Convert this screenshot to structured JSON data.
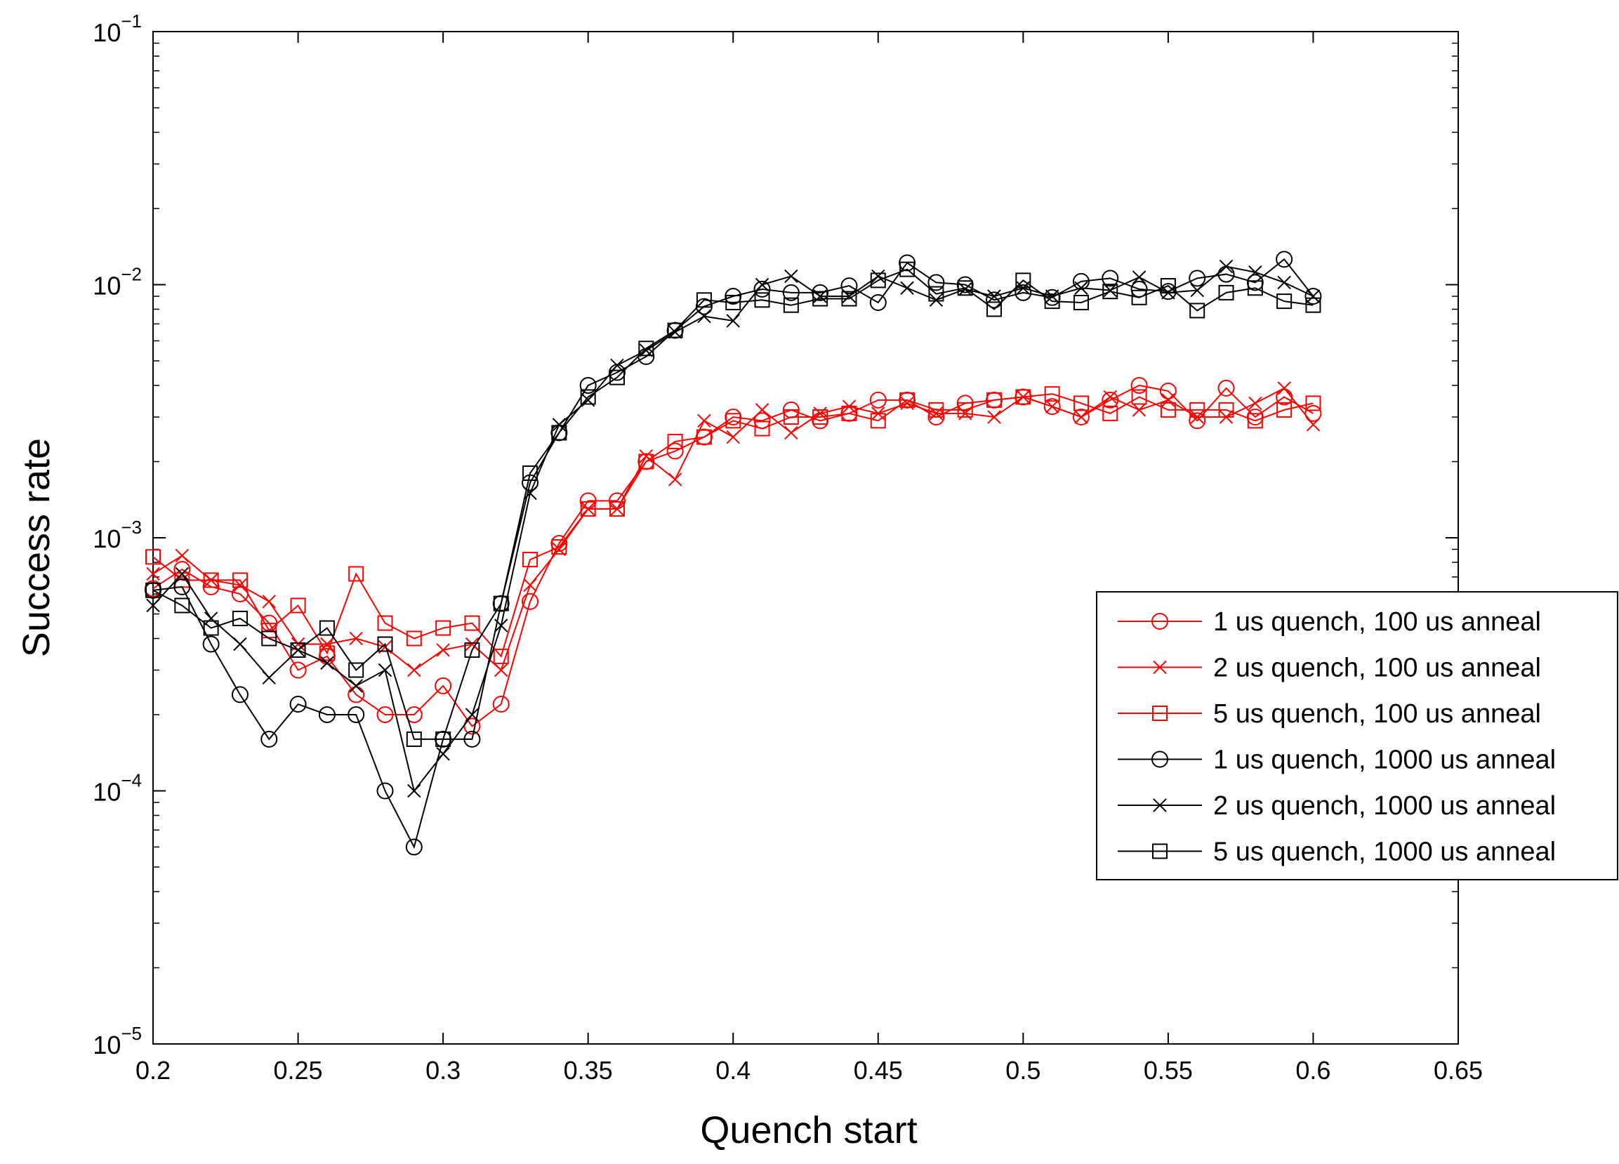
{
  "chart_data": {
    "type": "line",
    "xlabel": "Quench start",
    "ylabel": "Success rate",
    "yscale": "log",
    "xlim": [
      0.2,
      0.65
    ],
    "ylim": [
      1e-05,
      0.1
    ],
    "xticks": [
      0.2,
      0.25,
      0.3,
      0.35,
      0.4,
      0.45,
      0.5,
      0.55,
      0.6,
      0.65
    ],
    "xtick_labels": [
      "0.2",
      "0.25",
      "0.3",
      "0.35",
      "0.4",
      "0.45",
      "0.5",
      "0.55",
      "0.6",
      "0.65"
    ],
    "yticks": [
      {
        "value": 0.1,
        "base": "10",
        "exp": "−1"
      },
      {
        "value": 0.01,
        "base": "10",
        "exp": "−2"
      },
      {
        "value": 0.001,
        "base": "10",
        "exp": "−3"
      },
      {
        "value": 0.0001,
        "base": "10",
        "exp": "−4"
      },
      {
        "value": 1e-05,
        "base": "10",
        "exp": "−5"
      }
    ],
    "grid": false,
    "legend_position": "right",
    "colors": {
      "red": "#ff0000",
      "black": "#000000"
    },
    "x": [
      0.2,
      0.21,
      0.22,
      0.23,
      0.24,
      0.25,
      0.26,
      0.27,
      0.28,
      0.29,
      0.3,
      0.31,
      0.32,
      0.33,
      0.34,
      0.35,
      0.36,
      0.37,
      0.38,
      0.39,
      0.4,
      0.41,
      0.42,
      0.43,
      0.44,
      0.45,
      0.46,
      0.47,
      0.48,
      0.49,
      0.5,
      0.51,
      0.52,
      0.53,
      0.54,
      0.55,
      0.56,
      0.57,
      0.58,
      0.59,
      0.6
    ],
    "series": [
      {
        "name": "1 us quench, 100 us anneal",
        "color": "#ff0000",
        "marker": "circle",
        "values": [
          0.00063,
          0.00075,
          0.00064,
          0.0006,
          0.00046,
          0.0003,
          0.00034,
          0.00024,
          0.0002,
          0.0002,
          0.00026,
          0.00018,
          0.00022,
          0.00056,
          0.00095,
          0.0014,
          0.0014,
          0.002,
          0.0022,
          0.0025,
          0.003,
          0.0029,
          0.0032,
          0.0029,
          0.0031,
          0.0035,
          0.0035,
          0.003,
          0.0034,
          0.0035,
          0.0036,
          0.0033,
          0.003,
          0.0035,
          0.004,
          0.0038,
          0.0029,
          0.0039,
          0.003,
          0.0036,
          0.0031
        ]
      },
      {
        "name": "2 us quench, 100 us anneal",
        "color": "#ff0000",
        "marker": "x",
        "values": [
          0.00072,
          0.00085,
          0.00068,
          0.00065,
          0.00056,
          0.00038,
          0.00038,
          0.0004,
          0.00037,
          0.0003,
          0.00036,
          0.00038,
          0.0003,
          0.00065,
          0.0009,
          0.0013,
          0.0013,
          0.0021,
          0.0017,
          0.0029,
          0.0025,
          0.0032,
          0.0026,
          0.0031,
          0.0033,
          0.0031,
          0.0034,
          0.0031,
          0.0031,
          0.003,
          0.0036,
          0.0033,
          0.003,
          0.0036,
          0.0032,
          0.0035,
          0.003,
          0.003,
          0.0034,
          0.0039,
          0.0028
        ]
      },
      {
        "name": "5 us quench, 100 us anneal",
        "color": "#ff0000",
        "marker": "square",
        "values": [
          0.00084,
          0.00068,
          0.00068,
          0.00068,
          0.00043,
          0.00054,
          0.00035,
          0.00072,
          0.00046,
          0.0004,
          0.00044,
          0.00046,
          0.00034,
          0.00082,
          0.00092,
          0.0013,
          0.0013,
          0.002,
          0.0024,
          0.0025,
          0.0029,
          0.0027,
          0.003,
          0.003,
          0.0031,
          0.0029,
          0.0035,
          0.0032,
          0.0032,
          0.0035,
          0.0036,
          0.0037,
          0.0034,
          0.0031,
          0.0036,
          0.0032,
          0.0032,
          0.0032,
          0.0029,
          0.0032,
          0.0034
        ]
      },
      {
        "name": "1 us quench, 1000 us anneal",
        "color": "#000000",
        "marker": "circle",
        "values": [
          0.00062,
          0.00064,
          0.00038,
          0.00024,
          0.00016,
          0.00022,
          0.0002,
          0.0002,
          0.0001,
          6e-05,
          0.00016,
          0.00016,
          0.00055,
          0.00165,
          0.0026,
          0.004,
          0.0045,
          0.0052,
          0.0066,
          0.0082,
          0.009,
          0.0096,
          0.0093,
          0.0093,
          0.0099,
          0.0085,
          0.0122,
          0.0102,
          0.01,
          0.0087,
          0.0093,
          0.0089,
          0.0103,
          0.0106,
          0.0096,
          0.0094,
          0.0106,
          0.011,
          0.0102,
          0.0126,
          0.009
        ]
      },
      {
        "name": "2 us quench, 1000 us anneal",
        "color": "#000000",
        "marker": "x",
        "values": [
          0.00054,
          0.00072,
          0.00048,
          0.00038,
          0.00028,
          0.00036,
          0.00032,
          0.00026,
          0.0003,
          0.0001,
          0.00014,
          0.0002,
          0.00045,
          0.0015,
          0.0028,
          0.0035,
          0.0048,
          0.0055,
          0.0065,
          0.0075,
          0.0072,
          0.01,
          0.0108,
          0.009,
          0.009,
          0.0108,
          0.0097,
          0.0087,
          0.0096,
          0.009,
          0.0097,
          0.009,
          0.0097,
          0.0095,
          0.0107,
          0.0093,
          0.0095,
          0.0118,
          0.0112,
          0.0102,
          0.009
        ]
      },
      {
        "name": "5 us quench, 1000 us anneal",
        "color": "#000000",
        "marker": "square",
        "values": [
          0.00062,
          0.00054,
          0.00044,
          0.00048,
          0.0004,
          0.00036,
          0.00044,
          0.0003,
          0.00038,
          0.00016,
          0.00016,
          0.00036,
          0.00055,
          0.0018,
          0.0026,
          0.0036,
          0.0043,
          0.0056,
          0.0066,
          0.0087,
          0.0085,
          0.0087,
          0.0083,
          0.0088,
          0.0088,
          0.0104,
          0.0115,
          0.0092,
          0.0097,
          0.008,
          0.0104,
          0.0086,
          0.0085,
          0.0094,
          0.0089,
          0.0099,
          0.0079,
          0.0093,
          0.0097,
          0.0086,
          0.0083
        ]
      }
    ]
  }
}
